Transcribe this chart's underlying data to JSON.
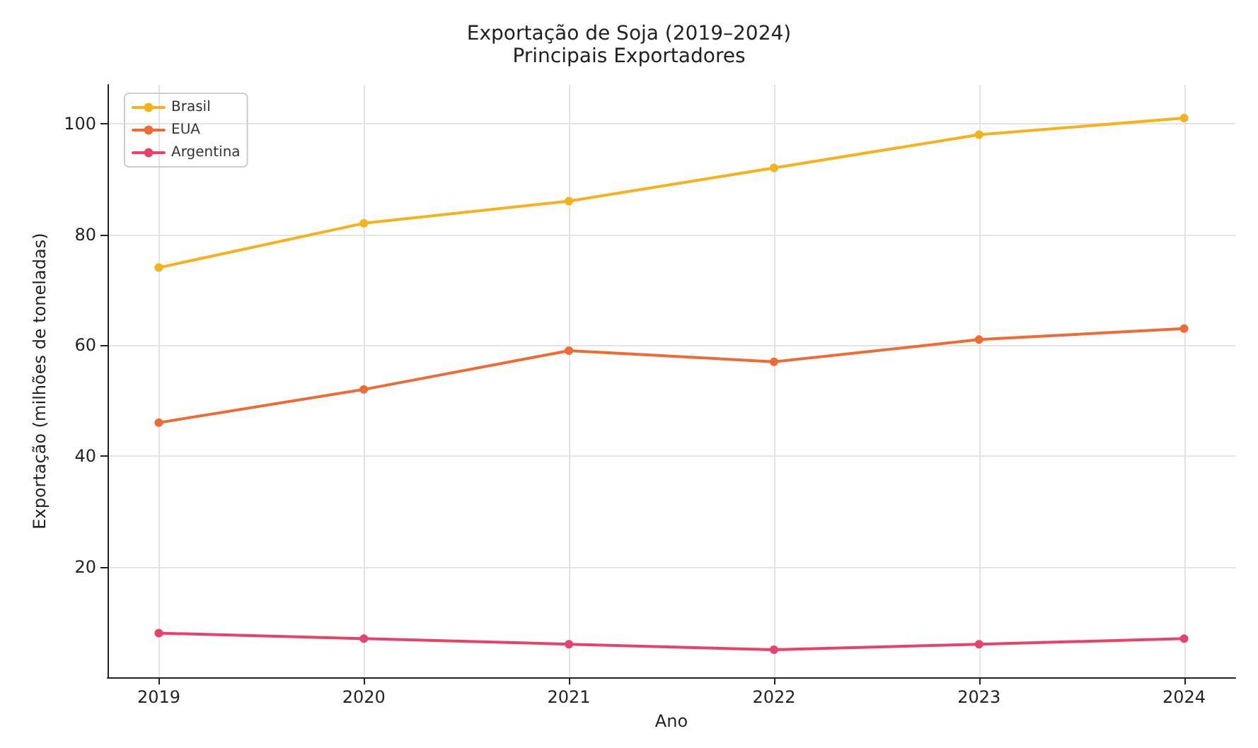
{
  "chart_data": {
    "type": "line",
    "title": "Exportação de Soja (2019–2024)",
    "subtitle": "Principais Exportadores",
    "xlabel": "Ano",
    "ylabel": "Exportação (milhões de toneladas)",
    "x": [
      2019,
      2020,
      2021,
      2022,
      2023,
      2024
    ],
    "series": [
      {
        "name": "Brasil",
        "color": "#f5b21b",
        "values": [
          74,
          82,
          86,
          92,
          98,
          101
        ]
      },
      {
        "name": "EUA",
        "color": "#ef6b33",
        "values": [
          46,
          52,
          59,
          57,
          61,
          63
        ]
      },
      {
        "name": "Argentina",
        "color": "#e8416c",
        "values": [
          8,
          7,
          6,
          5,
          6,
          7
        ]
      }
    ],
    "xlim": [
      2018.75,
      2024.25
    ],
    "xticks": [
      2019,
      2020,
      2021,
      2022,
      2023,
      2024
    ],
    "ylim": [
      0,
      107
    ],
    "yticks": [
      20,
      40,
      60,
      80,
      100
    ],
    "grid": true,
    "legend": "top left",
    "marker": "circle",
    "line_style": "solid"
  }
}
